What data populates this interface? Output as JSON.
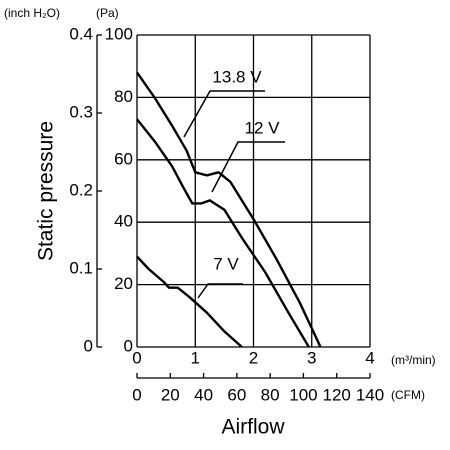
{
  "chart_data": {
    "type": "line",
    "x_label": "Airflow",
    "y_label": "Static pressure",
    "x_unit": "(m³/min)",
    "x2_unit": "(CFM)",
    "y_unit": "(Pa)",
    "y2_unit": "(inch H₂O)",
    "xlim": [
      0,
      4
    ],
    "xticks": [
      0,
      1,
      2,
      3,
      4
    ],
    "x2lim": [
      0,
      140
    ],
    "x2ticks": [
      0,
      20,
      40,
      60,
      80,
      100,
      120,
      140
    ],
    "ylim": [
      0,
      100
    ],
    "yticks": [
      0,
      20,
      40,
      60,
      80,
      100
    ],
    "y2lim": [
      0,
      0.4
    ],
    "y2ticks": [
      0,
      0.1,
      0.2,
      0.3,
      0.4
    ],
    "grid": true,
    "series": [
      {
        "name": "13.8 V",
        "color": "#000000",
        "x": [
          0,
          0.3,
          0.6,
          0.85,
          1.0,
          1.2,
          1.4,
          1.6,
          2.0,
          2.4,
          2.8,
          3.15
        ],
        "values": [
          88,
          80,
          71,
          63,
          56,
          55,
          56,
          53,
          41,
          28,
          14,
          0
        ]
      },
      {
        "name": "12 V",
        "color": "#000000",
        "x": [
          0,
          0.3,
          0.6,
          0.8,
          0.95,
          1.1,
          1.25,
          1.5,
          1.8,
          2.2,
          2.6,
          2.95
        ],
        "values": [
          73,
          66,
          58,
          51,
          46,
          46,
          47,
          44,
          35,
          24,
          11,
          0
        ]
      },
      {
        "name": "7 V",
        "color": "#000000",
        "x": [
          0,
          0.2,
          0.45,
          0.55,
          0.7,
          0.9,
          1.2,
          1.5,
          1.8
        ],
        "values": [
          29,
          25,
          21,
          19,
          19,
          16,
          11,
          5,
          0
        ]
      }
    ]
  }
}
